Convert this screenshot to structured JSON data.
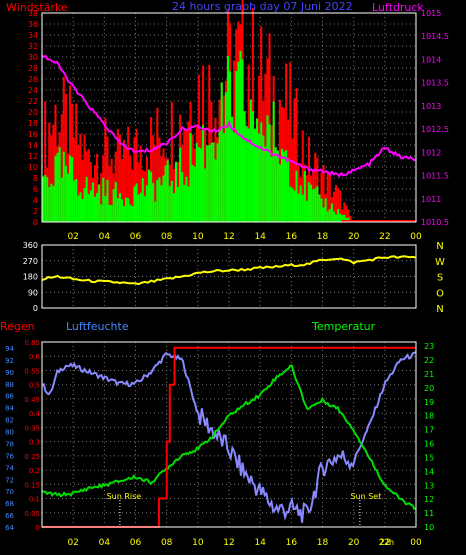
{
  "colors": {
    "background": "#000000",
    "frame": "#ffffff",
    "grid": "#777777",
    "wind_gust": "#ff0000",
    "wind_avg": "#00ff00",
    "pressure": "#ff00ff",
    "direction": "#ffff00",
    "rain": "#ff0000",
    "humidity": "#8888ff",
    "temperature": "#00dd00",
    "time_label": "#ffff00",
    "title": "#4444ff",
    "wind_label": "#ff0000",
    "pressure_label": "#ff00ff",
    "rain_label": "#ff0000",
    "humidity_label": "#4488ff",
    "temp_label": "#00ff00"
  },
  "chart_data": [
    {
      "type": "bar",
      "title": "24 hours graph day 07 Juni 2022",
      "ylabel_left": "Windstärke",
      "ylabel_right": "Luftdruck",
      "x_ticks": [
        "02",
        "04",
        "06",
        "08",
        "10",
        "12",
        "14",
        "16",
        "18",
        "20",
        "22",
        "00"
      ],
      "y_ticks_left": [
        "0",
        "2",
        "4",
        "6",
        "8",
        "10",
        "12",
        "14",
        "16",
        "18",
        "20",
        "22",
        "24",
        "26",
        "28",
        "30",
        "32",
        "34",
        "36",
        "38"
      ],
      "y_ticks_right": [
        "1010.5",
        "1011",
        "1011.5",
        "1012",
        "1012.5",
        "1013",
        "1013.5",
        "1014",
        "1014.5",
        "1015"
      ],
      "ylim_left": [
        0,
        38
      ],
      "ylim_right": [
        1010.5,
        1015
      ],
      "grid": true,
      "series": [
        {
          "name": "gust",
          "hours": [
            0,
            1,
            2,
            3,
            4,
            5,
            6,
            7,
            8,
            9,
            10,
            11,
            12,
            13,
            14,
            15,
            16,
            17,
            18,
            19,
            20,
            21,
            22,
            23,
            24
          ],
          "values": [
            18,
            24,
            20,
            14,
            16,
            14,
            16,
            18,
            20,
            22,
            30,
            28,
            34,
            36,
            32,
            28,
            24,
            14,
            10,
            6,
            0,
            0,
            0,
            0,
            0
          ]
        },
        {
          "name": "average",
          "hours": [
            0,
            1,
            2,
            3,
            4,
            5,
            6,
            7,
            8,
            9,
            10,
            11,
            12,
            13,
            14,
            15,
            16,
            17,
            18,
            19,
            20,
            21,
            22,
            23,
            24
          ],
          "values": [
            8,
            10,
            9,
            6,
            6,
            5,
            6,
            7,
            8,
            10,
            14,
            18,
            22,
            24,
            20,
            16,
            12,
            6,
            4,
            2,
            0,
            0,
            0,
            0,
            0
          ]
        },
        {
          "name": "pressure",
          "hours": [
            0,
            1,
            2,
            3,
            4,
            5,
            6,
            7,
            8,
            9,
            10,
            11,
            12,
            13,
            14,
            15,
            16,
            17,
            18,
            19,
            20,
            21,
            22,
            23,
            24
          ],
          "values": [
            1014.1,
            1013.9,
            1013.4,
            1013.0,
            1012.6,
            1012.2,
            1012.0,
            1012.05,
            1012.2,
            1012.5,
            1012.55,
            1012.45,
            1012.6,
            1012.3,
            1012.1,
            1011.95,
            1011.8,
            1011.65,
            1011.6,
            1011.5,
            1011.6,
            1011.75,
            1012.1,
            1011.9,
            1011.85
          ]
        }
      ]
    },
    {
      "type": "line",
      "y_ticks": [
        "0",
        "90",
        "180",
        "270",
        "360"
      ],
      "ylim": [
        0,
        360
      ],
      "side_labels": [
        "N",
        "W",
        "S",
        "O",
        "N"
      ],
      "series": [
        {
          "name": "direction",
          "hours": [
            0,
            1,
            2,
            3,
            4,
            5,
            6,
            7,
            8,
            9,
            10,
            11,
            12,
            13,
            14,
            15,
            16,
            17,
            18,
            19,
            20,
            21,
            22,
            23,
            24
          ],
          "values": [
            165,
            180,
            165,
            155,
            150,
            145,
            135,
            150,
            165,
            180,
            200,
            210,
            215,
            220,
            228,
            235,
            245,
            250,
            275,
            285,
            260,
            275,
            290,
            290,
            290
          ]
        }
      ]
    },
    {
      "type": "line",
      "ylabel_left_outer": "Regen",
      "ylabel_left_inner": "Luftfeuchte",
      "ylabel_right": "Temperatur",
      "y_ticks_rain": [
        "0",
        "0.05",
        "0.1",
        "0.15",
        "0.2",
        "0.25",
        "0.3",
        "0.35",
        "0.4",
        "0.45",
        "0.5",
        "0.55",
        "0.6",
        "0.65"
      ],
      "y_ticks_humidity": [
        "64",
        "66",
        "68",
        "70",
        "72",
        "74",
        "76",
        "78",
        "80",
        "82",
        "84",
        "86",
        "88",
        "90",
        "92",
        "94"
      ],
      "y_ticks_temp": [
        "10",
        "11",
        "12",
        "13",
        "14",
        "15",
        "16",
        "17",
        "18",
        "19",
        "20",
        "21",
        "22",
        "23"
      ],
      "ylim_rain": [
        0,
        0.65
      ],
      "ylim_humidity": [
        64,
        95
      ],
      "ylim_temp": [
        10,
        23.3
      ],
      "annotations": [
        "Sun Rise",
        "Sun Set"
      ],
      "series": [
        {
          "name": "rain",
          "hours": [
            0,
            6.5,
            7.5,
            8,
            8.2,
            8.5,
            10,
            12,
            14,
            16,
            18,
            20,
            22,
            24
          ],
          "values": [
            0,
            0,
            0.1,
            0.3,
            0.5,
            0.63,
            0.63,
            0.63,
            0.63,
            0.63,
            0.63,
            0.63,
            0.63,
            0.63
          ]
        },
        {
          "name": "humidity",
          "hours": [
            0,
            0.5,
            1,
            1.5,
            2,
            3,
            4,
            5,
            6,
            7,
            8,
            9,
            10,
            11,
            12,
            13,
            14,
            15,
            16,
            17,
            18,
            19,
            20,
            21,
            22,
            23,
            24
          ],
          "values": [
            88,
            86,
            90,
            91,
            91,
            90,
            89,
            88,
            88,
            90,
            93,
            92,
            83,
            80,
            77,
            73,
            70,
            67,
            67,
            66,
            74,
            76,
            75,
            81,
            88,
            92,
            93
          ]
        },
        {
          "name": "temperature",
          "hours": [
            0,
            1,
            2,
            3,
            4,
            5,
            6,
            7,
            8,
            9,
            10,
            11,
            12,
            13,
            14,
            15,
            16,
            17,
            18,
            19,
            20,
            21,
            22,
            23,
            24
          ],
          "values": [
            12.5,
            12.3,
            12.4,
            12.8,
            13.0,
            13.3,
            13.6,
            13.2,
            14.2,
            15.2,
            15.6,
            16.6,
            18.0,
            18.8,
            19.5,
            20.7,
            21.6,
            18.5,
            19.1,
            18.5,
            17,
            15,
            13,
            12,
            11.3
          ]
        }
      ]
    }
  ],
  "labels": {
    "title": "24 hours graph day  07 Juni 2022",
    "wind": "Windstärke",
    "pressure": "Luftdruck",
    "rain": "Regen",
    "humidity": "Luftfeuchte",
    "temperature": "Temperatur",
    "sunrise": "Sun Rise",
    "sunset": "Sun Set",
    "now_marker": "22h"
  }
}
